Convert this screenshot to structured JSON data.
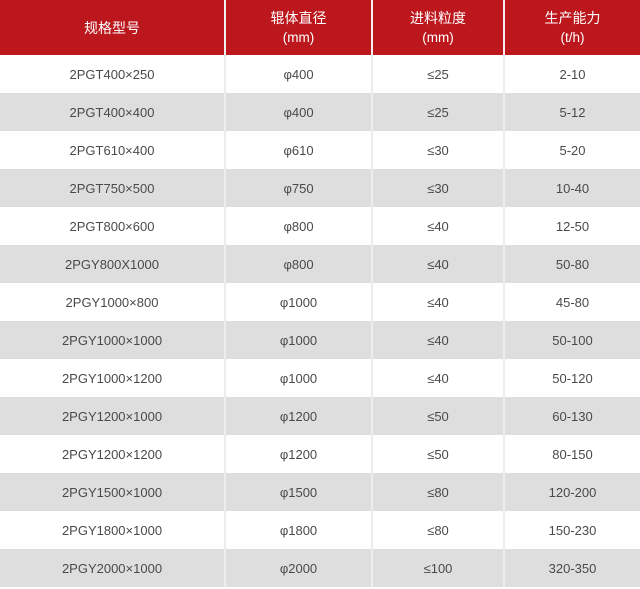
{
  "colors": {
    "header_bg": "#BB171C",
    "header_text": "#FFFFFF",
    "row_bg": "#FFFFFF",
    "row_alt_bg": "#DEDEDE",
    "body_text": "#4A4A4A"
  },
  "chart_data": {
    "type": "table",
    "title": "",
    "columns": [
      {
        "title": "规格型号",
        "unit": ""
      },
      {
        "title": "辊体直径",
        "unit": "(mm)"
      },
      {
        "title": "进料粒度",
        "unit": "(mm)"
      },
      {
        "title": "生产能力",
        "unit": "(t/h)"
      }
    ],
    "rows": [
      [
        "2PGT400×250",
        "φ400",
        "≤25",
        "2-10"
      ],
      [
        "2PGT400×400",
        "φ400",
        "≤25",
        "5-12"
      ],
      [
        "2PGT610×400",
        "φ610",
        "≤30",
        "5-20"
      ],
      [
        "2PGT750×500",
        "φ750",
        "≤30",
        "10-40"
      ],
      [
        "2PGT800×600",
        "φ800",
        "≤40",
        "12-50"
      ],
      [
        "2PGY800X1000",
        "φ800",
        "≤40",
        "50-80"
      ],
      [
        "2PGY1000×800",
        "φ1000",
        "≤40",
        "45-80"
      ],
      [
        "2PGY1000×1000",
        "φ1000",
        "≤40",
        "50-100"
      ],
      [
        "2PGY1000×1200",
        "φ1000",
        "≤40",
        "50-120"
      ],
      [
        "2PGY1200×1000",
        "φ1200",
        "≤50",
        "60-130"
      ],
      [
        "2PGY1200×1200",
        "φ1200",
        "≤50",
        "80-150"
      ],
      [
        "2PGY1500×1000",
        "φ1500",
        "≤80",
        "120-200"
      ],
      [
        "2PGY1800×1000",
        "φ1800",
        "≤80",
        "150-230"
      ],
      [
        "2PGY2000×1000",
        "φ2000",
        "≤100",
        "320-350"
      ]
    ]
  }
}
